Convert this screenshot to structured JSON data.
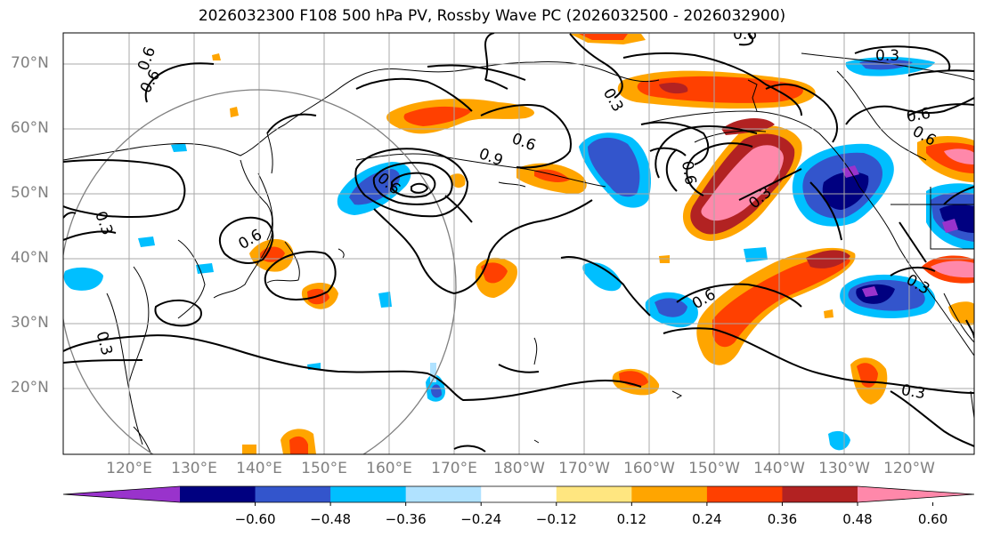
{
  "title": "2026032300 F108 500 hPa PV, Rossby Wave PC (2026032500 - 2026032900)",
  "lat_labels": [
    "70°N",
    "60°N",
    "50°N",
    "40°N",
    "30°N",
    "20°N"
  ],
  "lon_labels": [
    "120°E",
    "130°E",
    "140°E",
    "150°E",
    "160°E",
    "170°E",
    "180°W",
    "170°W",
    "160°W",
    "150°W",
    "140°W",
    "130°W",
    "120°W"
  ],
  "colorbar": {
    "ticks": [
      "−0.60",
      "−0.48",
      "−0.36",
      "−0.24",
      "−0.12",
      "0.12",
      "0.24",
      "0.36",
      "0.48",
      "0.60"
    ],
    "colors": [
      "#9933cc",
      "#000080",
      "#3355cc",
      "#00bfff",
      "#b0e2ff",
      "#ffffff",
      "#ffe680",
      "#ffa500",
      "#ff4000",
      "#b22222",
      "#ff88aa"
    ]
  },
  "contour_labels": [
    "0.6",
    "0.6",
    "0.3",
    "0.6",
    "0.3",
    "0.6",
    "0.9",
    "0.6",
    "0.6",
    "0.3",
    "0.6",
    "0.6",
    "0.3",
    "0.3",
    "0.6",
    "0.6",
    "0.3",
    "0.3"
  ]
}
